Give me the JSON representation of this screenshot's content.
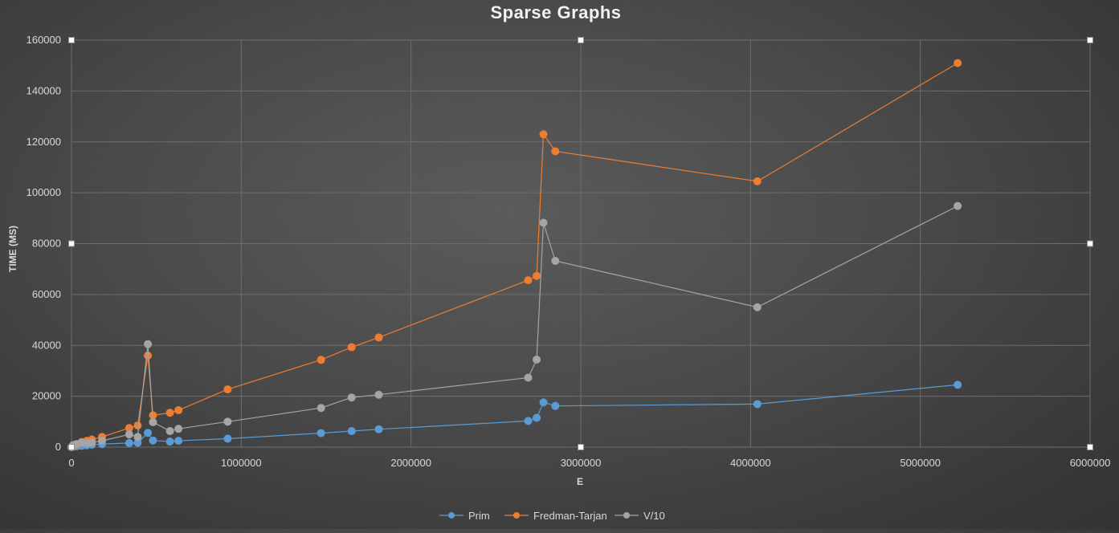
{
  "chart_data": {
    "type": "scatter",
    "title": "Sparse Graphs",
    "xlabel": "E",
    "ylabel": "TIME (MS)",
    "xlim": [
      0,
      6000000
    ],
    "ylim": [
      0,
      160000
    ],
    "x_ticks": [
      0,
      1000000,
      2000000,
      3000000,
      4000000,
      5000000,
      6000000
    ],
    "y_ticks": [
      0,
      20000,
      40000,
      60000,
      80000,
      100000,
      120000,
      140000,
      160000
    ],
    "grid": true,
    "legend_position": "bottom",
    "series": [
      {
        "name": "Prim",
        "color": "#5b9bd5",
        "points": [
          [
            0,
            0
          ],
          [
            10000,
            150
          ],
          [
            30000,
            300
          ],
          [
            60000,
            500
          ],
          [
            90000,
            700
          ],
          [
            120000,
            900
          ],
          [
            180000,
            1200
          ],
          [
            340000,
            1600
          ],
          [
            390000,
            1700
          ],
          [
            450000,
            5600
          ],
          [
            480000,
            2600
          ],
          [
            580000,
            2200
          ],
          [
            630000,
            2500
          ],
          [
            920000,
            3300
          ],
          [
            1470000,
            5500
          ],
          [
            1650000,
            6300
          ],
          [
            1810000,
            7000
          ],
          [
            2690000,
            10300
          ],
          [
            2740000,
            11500
          ],
          [
            2780000,
            17600
          ],
          [
            2850000,
            16200
          ],
          [
            4040000,
            16900
          ],
          [
            5220000,
            24500
          ]
        ]
      },
      {
        "name": "Fredman-Tarjan",
        "color": "#ed7d31",
        "points": [
          [
            0,
            0
          ],
          [
            10000,
            500
          ],
          [
            30000,
            1000
          ],
          [
            60000,
            2000
          ],
          [
            90000,
            2500
          ],
          [
            120000,
            3000
          ],
          [
            180000,
            4000
          ],
          [
            340000,
            7500
          ],
          [
            390000,
            8500
          ],
          [
            450000,
            36000
          ],
          [
            480000,
            12500
          ],
          [
            580000,
            13500
          ],
          [
            630000,
            14500
          ],
          [
            920000,
            22700
          ],
          [
            1470000,
            34300
          ],
          [
            1650000,
            39300
          ],
          [
            1810000,
            43100
          ],
          [
            2690000,
            65600
          ],
          [
            2740000,
            67300
          ],
          [
            2780000,
            123000
          ],
          [
            2850000,
            116300
          ],
          [
            4040000,
            104500
          ],
          [
            5220000,
            151000
          ]
        ]
      },
      {
        "name": "V/10",
        "color": "#a5a5a5",
        "points": [
          [
            0,
            0
          ],
          [
            10000,
            800
          ],
          [
            30000,
            1200
          ],
          [
            60000,
            1800
          ],
          [
            90000,
            1500
          ],
          [
            120000,
            1800
          ],
          [
            180000,
            2500
          ],
          [
            340000,
            5000
          ],
          [
            390000,
            4000
          ],
          [
            450000,
            40500
          ],
          [
            480000,
            9800
          ],
          [
            580000,
            6300
          ],
          [
            630000,
            7200
          ],
          [
            920000,
            10000
          ],
          [
            1470000,
            15400
          ],
          [
            1650000,
            19500
          ],
          [
            1810000,
            20600
          ],
          [
            2690000,
            27300
          ],
          [
            2740000,
            34400
          ],
          [
            2780000,
            88200
          ],
          [
            2850000,
            73200
          ],
          [
            4040000,
            55000
          ],
          [
            5220000,
            94800
          ]
        ]
      }
    ]
  }
}
